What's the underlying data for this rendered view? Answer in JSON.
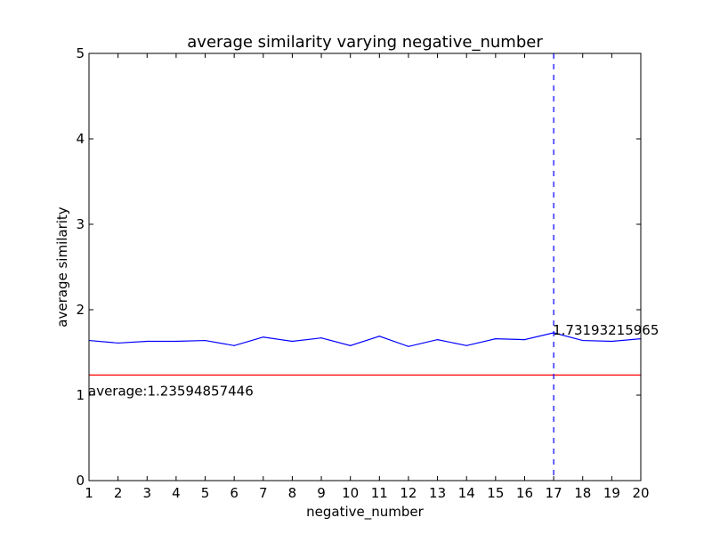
{
  "chart_data": {
    "type": "line",
    "title": "average similarity varying negative_number",
    "xlabel": "negative_number",
    "ylabel": "average similarity",
    "xlim": [
      1,
      20
    ],
    "ylim": [
      0,
      5
    ],
    "x_ticks": [
      "1",
      "2",
      "3",
      "4",
      "5",
      "6",
      "7",
      "8",
      "9",
      "10",
      "11",
      "12",
      "13",
      "14",
      "15",
      "16",
      "17",
      "18",
      "19",
      "20"
    ],
    "y_ticks": [
      "0",
      "1",
      "2",
      "3",
      "4",
      "5"
    ],
    "x": [
      1,
      2,
      3,
      4,
      5,
      6,
      7,
      8,
      9,
      10,
      11,
      12,
      13,
      14,
      15,
      16,
      17,
      18,
      19,
      20
    ],
    "series": [
      {
        "values": [
          1.64,
          1.61,
          1.63,
          1.63,
          1.64,
          1.58,
          1.68,
          1.63,
          1.67,
          1.58,
          1.69,
          1.57,
          1.65,
          1.58,
          1.66,
          1.65,
          1.73,
          1.64,
          1.63,
          1.66
        ],
        "color": "#0000ff"
      }
    ],
    "average_line": {
      "value": 1.23594857446,
      "label": "average:1.23594857446",
      "color": "#ff0000"
    },
    "max_marker": {
      "x": 17,
      "label": "1.73193215965",
      "color": "#0000ff",
      "style": "dashed"
    },
    "grid": false,
    "legend": "none"
  }
}
